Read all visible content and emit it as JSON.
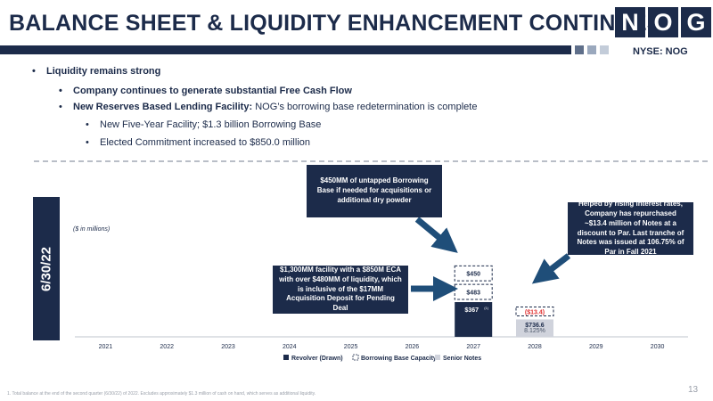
{
  "header": {
    "title": "BALANCE SHEET & LIQUIDITY ENHANCEMENT CONTINUES",
    "logo_letters": [
      "N",
      "O",
      "G"
    ],
    "ticker": "NYSE: NOG"
  },
  "bullets": {
    "b1": "Liquidity remains strong",
    "b2": "Company continues to generate substantial Free Cash Flow",
    "b3_strong": "New Reserves Based Lending Facility:",
    "b3_rest": " NOG’s borrowing base redetermination is complete",
    "b4": "New Five-Year Facility; $1.3 billion Borrowing Base",
    "b5": "Elected Commitment increased to $850.0 million"
  },
  "side_label": "6/30/22",
  "units_note": "($ in millions)",
  "callouts": {
    "untapped": "$450MM of untapped Borrowing Base if needed for acquisitions or additional dry powder",
    "facility": "$1,300MM facility with a $850M ECA with over $480MM of liquidity, which is inclusive of the $17MM Acquisition Deposit for Pending Deal",
    "repurchase": "Helped by rising interest rates, Company has repurchased ~$13.4 million of Notes at a discount to Par. Last tranche of Notes was issued at 106.75% of Par in Fall 2021"
  },
  "chart_data": {
    "type": "bar",
    "stacked": true,
    "categories": [
      "2021",
      "2022",
      "2023",
      "2024",
      "2025",
      "2026",
      "2027",
      "2028",
      "2029",
      "2030"
    ],
    "series": [
      {
        "name": "Revolver (Drawn)",
        "values": [
          0,
          0,
          0,
          0,
          0,
          0,
          367,
          0,
          0,
          0
        ],
        "color": "#1c2b4a"
      },
      {
        "name": "Borrowing Base Capacity",
        "values": [
          0,
          0,
          0,
          0,
          0,
          0,
          933,
          0,
          0,
          0
        ],
        "segments_2027": [
          483,
          450
        ],
        "style": "dashed-outline"
      },
      {
        "name": "Senior Notes",
        "values": [
          0,
          0,
          0,
          0,
          0,
          0,
          0,
          736.6,
          0,
          0
        ],
        "color": "#d0d3dc"
      }
    ],
    "repurchased_notes_2028": 13.4,
    "labels": {
      "revolver_2027": "$367",
      "revolver_2027_sup": "(1)",
      "capacity_eca_2027": "$483",
      "capacity_untapped_2027": "$450",
      "notes_2028": "$736.6",
      "repurchased_2028": "($13.4)",
      "coupon_2028": "8.125%"
    },
    "ylim": [
      0,
      1300
    ],
    "legend_position": "bottom",
    "grid": false
  },
  "colors": {
    "navy": "#1c2b4a",
    "notes_gray": "#d0d3dc",
    "repurchase_red": "#e03030",
    "arrow_blue": "#1f4e79",
    "square_1": "#5f6f8a",
    "square_2": "#9aa8bd",
    "square_3": "#c3ccd9"
  },
  "footnote": "1.    Total balance at the end of the second quarter (6/30/22) of 2022. Excludes approximately $1.3 million of cash on hand, which serves as additional liquidity.",
  "page_number": "13"
}
